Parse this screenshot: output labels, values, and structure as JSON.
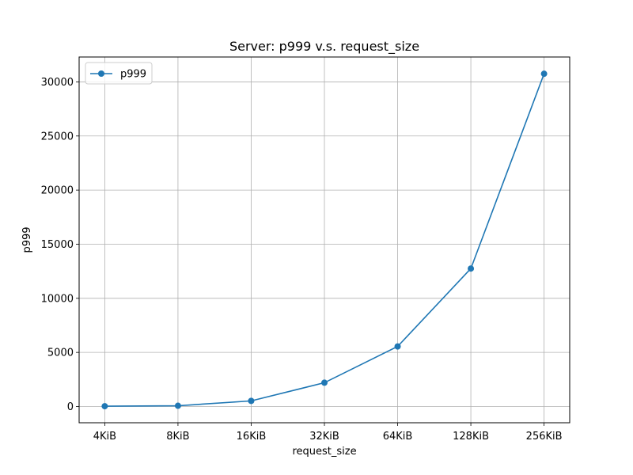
{
  "chart_data": {
    "type": "line",
    "title": "Server: p999 v.s. request_size",
    "xlabel": "request_size",
    "ylabel": "p999",
    "categories": [
      "4KiB",
      "8KiB",
      "16KiB",
      "32KiB",
      "64KiB",
      "128KiB",
      "256KiB"
    ],
    "series": [
      {
        "name": "p999",
        "color": "#1f77b4",
        "marker": "circle",
        "values": [
          30,
          70,
          520,
          2200,
          5550,
          12750,
          30750
        ]
      }
    ],
    "y_ticks": [
      0,
      5000,
      10000,
      15000,
      20000,
      25000,
      30000
    ],
    "y_tick_labels": [
      "0",
      "5000",
      "10000",
      "15000",
      "20000",
      "25000",
      "30000"
    ],
    "ylim": [
      -1500,
      32300
    ],
    "grid": true,
    "legend_position": "upper-left"
  }
}
